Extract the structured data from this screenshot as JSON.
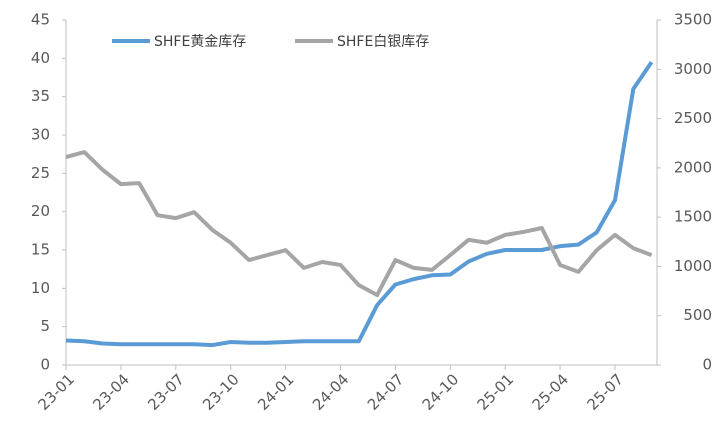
{
  "chart_data": {
    "type": "line",
    "categories": [
      "23-01",
      null,
      null,
      "23-04",
      null,
      null,
      "23-07",
      null,
      null,
      "23-10",
      null,
      null,
      "24-01",
      null,
      null,
      "24-04",
      null,
      null,
      "24-07",
      null,
      null,
      "24-10",
      null,
      null,
      "25-01",
      null,
      null,
      "25-04",
      null,
      null,
      "25-07",
      null,
      null
    ],
    "series": [
      {
        "name": "SHFE黄金库存",
        "color": "#5b9bd5",
        "axis": "y",
        "values": [
          3.2,
          3.1,
          2.8,
          2.7,
          2.7,
          2.7,
          2.7,
          2.7,
          2.6,
          3.0,
          2.9,
          2.9,
          3.0,
          3.1,
          3.1,
          3.1,
          3.1,
          7.8,
          10.5,
          11.2,
          11.7,
          11.8,
          13.5,
          14.5,
          15.0,
          15.0,
          15.0,
          15.5,
          15.7,
          17.3,
          21.5,
          36,
          39.5
        ]
      },
      {
        "name": "SHFE白银库存",
        "color": "#a5a5a5",
        "axis": "y2",
        "values": [
          2110,
          2160,
          1980,
          1835,
          1845,
          1520,
          1490,
          1550,
          1370,
          1240,
          1065,
          1115,
          1165,
          985,
          1045,
          1015,
          810,
          710,
          1065,
          985,
          965,
          1115,
          1270,
          1240,
          1320,
          1350,
          1390,
          1015,
          945,
          1165,
          1320,
          1185,
          1115
        ]
      }
    ],
    "ylim": [
      0,
      45
    ],
    "yticks": [
      0,
      5,
      10,
      15,
      20,
      25,
      30,
      35,
      40,
      45
    ],
    "y2lim": [
      0,
      3500
    ],
    "y2ticks": [
      0,
      500,
      1000,
      1500,
      2000,
      2500,
      3000,
      3500
    ],
    "grid": false,
    "legend": "top"
  }
}
